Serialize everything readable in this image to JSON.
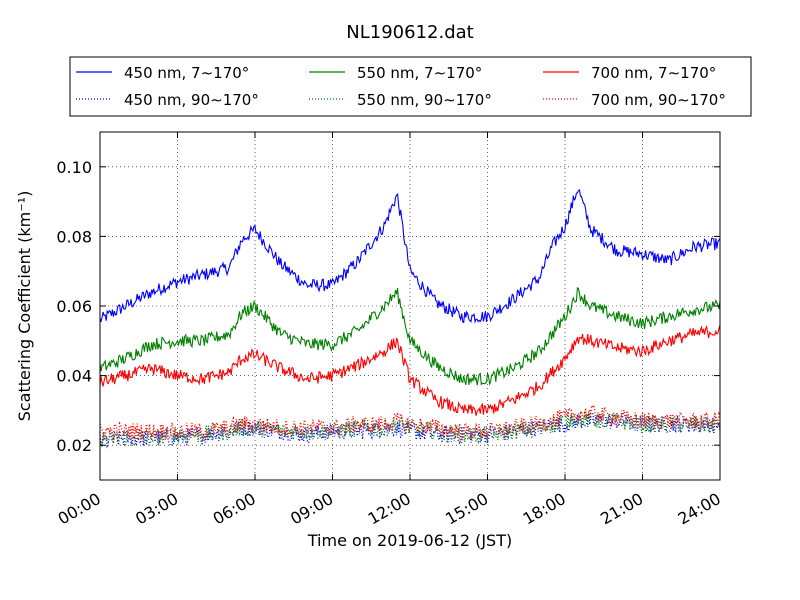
{
  "chart_data": {
    "type": "line",
    "title": "NL190612.dat",
    "xlabel": "Time on 2019-06-12 (JST)",
    "ylabel": "Scattering Coefficient (km⁻¹)",
    "xlim": [
      0,
      24
    ],
    "ylim": [
      0.01,
      0.11
    ],
    "x_tick_labels": [
      "00:00",
      "03:00",
      "06:00",
      "09:00",
      "12:00",
      "15:00",
      "18:00",
      "21:00",
      "24:00"
    ],
    "y_tick_labels": [
      "0.02",
      "0.04",
      "0.06",
      "0.08",
      "0.10"
    ],
    "grid": true,
    "legend_placement": "top, above plot",
    "x_hours": [
      0,
      1,
      2,
      3,
      4,
      5,
      5.5,
      6,
      7,
      8,
      9,
      10,
      11,
      11.5,
      12,
      13,
      14,
      15,
      16,
      17,
      17.5,
      18,
      18.5,
      19,
      20,
      21,
      22,
      23,
      24
    ],
    "series": [
      {
        "name": "450 nm, 7∼170°",
        "style": "solid",
        "color": "#0000ff",
        "values": [
          0.056,
          0.06,
          0.064,
          0.067,
          0.069,
          0.071,
          0.079,
          0.082,
          0.072,
          0.066,
          0.066,
          0.073,
          0.083,
          0.092,
          0.07,
          0.061,
          0.057,
          0.057,
          0.062,
          0.068,
          0.077,
          0.083,
          0.094,
          0.082,
          0.076,
          0.075,
          0.073,
          0.077,
          0.078
        ]
      },
      {
        "name": "450 nm, 90∼170°",
        "style": "dotted",
        "color": "#0000ff",
        "values": [
          0.021,
          0.022,
          0.022,
          0.022,
          0.023,
          0.024,
          0.025,
          0.025,
          0.024,
          0.023,
          0.024,
          0.024,
          0.025,
          0.025,
          0.024,
          0.023,
          0.023,
          0.023,
          0.024,
          0.025,
          0.026,
          0.026,
          0.027,
          0.027,
          0.027,
          0.026,
          0.026,
          0.026,
          0.026
        ]
      },
      {
        "name": "550 nm, 7∼170°",
        "style": "solid",
        "color": "#008000",
        "values": [
          0.042,
          0.045,
          0.049,
          0.05,
          0.05,
          0.052,
          0.058,
          0.06,
          0.052,
          0.049,
          0.049,
          0.053,
          0.06,
          0.064,
          0.05,
          0.043,
          0.039,
          0.039,
          0.042,
          0.047,
          0.052,
          0.057,
          0.064,
          0.06,
          0.057,
          0.055,
          0.057,
          0.059,
          0.06
        ]
      },
      {
        "name": "550 nm, 90∼170°",
        "style": "dotted",
        "color": "#008000",
        "values": [
          0.022,
          0.022,
          0.022,
          0.023,
          0.023,
          0.024,
          0.025,
          0.025,
          0.024,
          0.024,
          0.024,
          0.025,
          0.025,
          0.026,
          0.025,
          0.024,
          0.023,
          0.023,
          0.024,
          0.025,
          0.026,
          0.027,
          0.028,
          0.027,
          0.027,
          0.026,
          0.026,
          0.026,
          0.026
        ]
      },
      {
        "name": "700 nm, 7∼170°",
        "style": "solid",
        "color": "#ff0000",
        "values": [
          0.038,
          0.04,
          0.042,
          0.04,
          0.039,
          0.041,
          0.045,
          0.046,
          0.042,
          0.039,
          0.04,
          0.043,
          0.047,
          0.05,
          0.039,
          0.033,
          0.03,
          0.03,
          0.033,
          0.037,
          0.041,
          0.045,
          0.051,
          0.05,
          0.048,
          0.047,
          0.05,
          0.052,
          0.053
        ]
      },
      {
        "name": "700 nm, 90∼170°",
        "style": "dotted",
        "color": "#ff0000",
        "values": [
          0.024,
          0.024,
          0.024,
          0.024,
          0.024,
          0.025,
          0.026,
          0.026,
          0.025,
          0.025,
          0.025,
          0.026,
          0.026,
          0.027,
          0.026,
          0.025,
          0.024,
          0.024,
          0.025,
          0.026,
          0.027,
          0.028,
          0.029,
          0.029,
          0.028,
          0.027,
          0.027,
          0.027,
          0.027
        ]
      }
    ]
  }
}
